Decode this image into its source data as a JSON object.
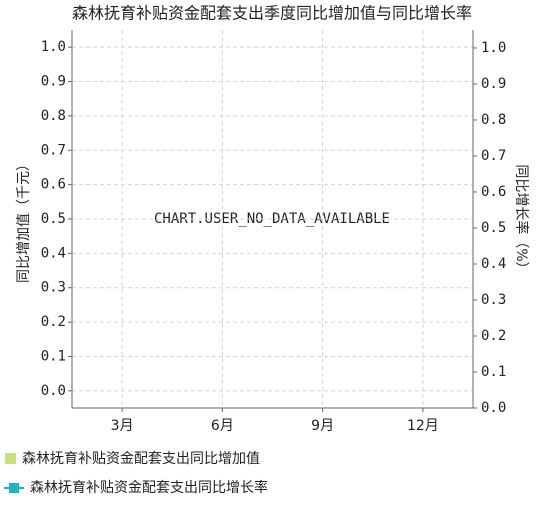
{
  "chart_data": {
    "type": "bar-line",
    "title": "森林抚育补贴资金配套支出季度同比增加值与同比增长率",
    "y_label": "同比增加值（千元）",
    "y2_label": "同比增长率（%）",
    "no_data_text": "CHART.USER_NO_DATA_AVAILABLE",
    "categories": [
      "3月",
      "6月",
      "9月",
      "12月"
    ],
    "series": [
      {
        "name": "森林抚育补贴资金配套支出同比增加值",
        "type": "bar",
        "color": "#c8e27a",
        "values": [
          null,
          null,
          null,
          null
        ]
      },
      {
        "name": "森林抚育补贴资金配套支出同比增长率",
        "type": "line",
        "axis": "y2",
        "color": "#1bb7c9",
        "values": [
          null,
          null,
          null,
          null
        ]
      }
    ],
    "ylim": [
      -0.05,
      1.05
    ],
    "yticks": [
      {
        "value": 0,
        "label": "0.0"
      },
      0.1,
      0.2,
      0.3,
      0.4,
      0.5,
      0.6,
      0.7,
      0.8,
      0.9,
      {
        "value": 1,
        "label": "1.0"
      }
    ],
    "y2lim": [
      0,
      1.05
    ],
    "y2ticks": [
      {
        "value": 0,
        "label": "0.0"
      },
      0.1,
      0.2,
      0.3,
      0.4,
      0.5,
      0.6,
      0.7,
      0.8,
      0.9,
      {
        "value": 1,
        "label": "1.0"
      }
    ],
    "grid": true,
    "legend": "bottom-left"
  }
}
